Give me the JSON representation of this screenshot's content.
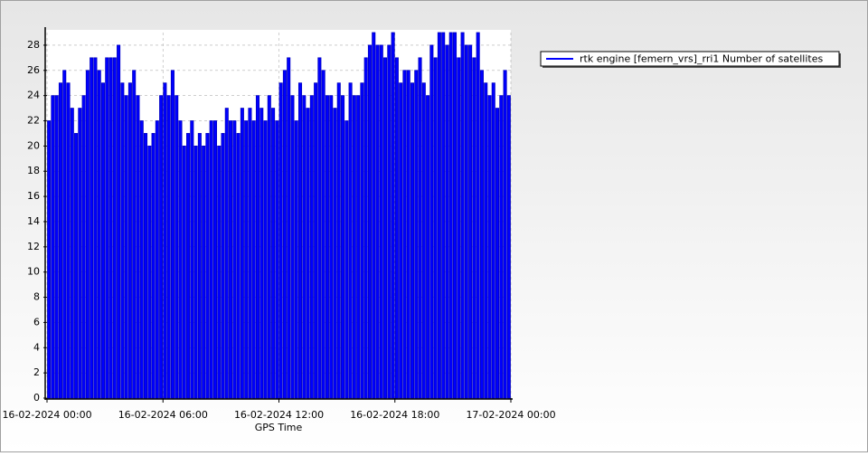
{
  "chart_data": {
    "type": "bar",
    "xlabel": "GPS Time",
    "color": "#0000ff",
    "grid": true,
    "legend": "top-right",
    "series": [
      {
        "name": "rtk engine [femern_vrs]_rri1 Number of satellites",
        "color": "#0000ff",
        "values": [
          22,
          24,
          24,
          25,
          26,
          25,
          23,
          21,
          23,
          24,
          26,
          27,
          27,
          26,
          25,
          27,
          27,
          27,
          28,
          25,
          24,
          25,
          26,
          24,
          22,
          21,
          20,
          21,
          22,
          24,
          25,
          24,
          26,
          24,
          22,
          20,
          21,
          22,
          20,
          21,
          20,
          21,
          22,
          22,
          20,
          21,
          23,
          22,
          22,
          21,
          23,
          22,
          23,
          22,
          24,
          23,
          22,
          24,
          23,
          22,
          25,
          26,
          27,
          24,
          22,
          25,
          24,
          23,
          24,
          25,
          27,
          26,
          24,
          24,
          23,
          25,
          24,
          22,
          25,
          24,
          24,
          25,
          27,
          28,
          29,
          28,
          28,
          27,
          28,
          29,
          27,
          25,
          26,
          26,
          25,
          26,
          27,
          25,
          24,
          28,
          27,
          29,
          29,
          28,
          29,
          29,
          27,
          29,
          28,
          28,
          27,
          29,
          26,
          25,
          24,
          25,
          23,
          24,
          26,
          24
        ]
      }
    ],
    "x": [
      "16-02-2024 00:00",
      "16-02-2024 00:12",
      "16-02-2024 00:24",
      "16-02-2024 00:36",
      "16-02-2024 00:48",
      "16-02-2024 01:00",
      "16-02-2024 01:12",
      "16-02-2024 01:24",
      "16-02-2024 01:36",
      "16-02-2024 01:48",
      "16-02-2024 02:00",
      "16-02-2024 02:12",
      "16-02-2024 02:24",
      "16-02-2024 02:36",
      "16-02-2024 02:48",
      "16-02-2024 03:00",
      "16-02-2024 03:12",
      "16-02-2024 03:24",
      "16-02-2024 03:36",
      "16-02-2024 03:48",
      "16-02-2024 04:00",
      "16-02-2024 04:12",
      "16-02-2024 04:24",
      "16-02-2024 04:36",
      "16-02-2024 04:48",
      "16-02-2024 05:00",
      "16-02-2024 05:12",
      "16-02-2024 05:24",
      "16-02-2024 05:36",
      "16-02-2024 05:48",
      "16-02-2024 06:00",
      "16-02-2024 06:12",
      "16-02-2024 06:24",
      "16-02-2024 06:36",
      "16-02-2024 06:48",
      "16-02-2024 07:00",
      "16-02-2024 07:12",
      "16-02-2024 07:24",
      "16-02-2024 07:36",
      "16-02-2024 07:48",
      "16-02-2024 08:00",
      "16-02-2024 08:12",
      "16-02-2024 08:24",
      "16-02-2024 08:36",
      "16-02-2024 08:48",
      "16-02-2024 09:00",
      "16-02-2024 09:12",
      "16-02-2024 09:24",
      "16-02-2024 09:36",
      "16-02-2024 09:48",
      "16-02-2024 10:00",
      "16-02-2024 10:12",
      "16-02-2024 10:24",
      "16-02-2024 10:36",
      "16-02-2024 10:48",
      "16-02-2024 11:00",
      "16-02-2024 11:12",
      "16-02-2024 11:24",
      "16-02-2024 11:36",
      "16-02-2024 11:48",
      "16-02-2024 12:00",
      "16-02-2024 12:12",
      "16-02-2024 12:24",
      "16-02-2024 12:36",
      "16-02-2024 12:48",
      "16-02-2024 13:00",
      "16-02-2024 13:12",
      "16-02-2024 13:24",
      "16-02-2024 13:36",
      "16-02-2024 13:48",
      "16-02-2024 14:00",
      "16-02-2024 14:12",
      "16-02-2024 14:24",
      "16-02-2024 14:36",
      "16-02-2024 14:48",
      "16-02-2024 15:00",
      "16-02-2024 15:12",
      "16-02-2024 15:24",
      "16-02-2024 15:36",
      "16-02-2024 15:48",
      "16-02-2024 16:00",
      "16-02-2024 16:12",
      "16-02-2024 16:24",
      "16-02-2024 16:36",
      "16-02-2024 16:48",
      "16-02-2024 17:00",
      "16-02-2024 17:12",
      "16-02-2024 17:24",
      "16-02-2024 17:36",
      "16-02-2024 17:48",
      "16-02-2024 18:00",
      "16-02-2024 18:12",
      "16-02-2024 18:24",
      "16-02-2024 18:36",
      "16-02-2024 18:48",
      "16-02-2024 19:00",
      "16-02-2024 19:12",
      "16-02-2024 19:24",
      "16-02-2024 19:36",
      "16-02-2024 19:48",
      "16-02-2024 20:00",
      "16-02-2024 20:12",
      "16-02-2024 20:24",
      "16-02-2024 20:36",
      "16-02-2024 20:48",
      "16-02-2024 21:00",
      "16-02-2024 21:12",
      "16-02-2024 21:24",
      "16-02-2024 21:36",
      "16-02-2024 21:48",
      "16-02-2024 22:00",
      "16-02-2024 22:12",
      "16-02-2024 22:24",
      "16-02-2024 22:36",
      "16-02-2024 22:48",
      "16-02-2024 23:00",
      "16-02-2024 23:12",
      "16-02-2024 23:24",
      "16-02-2024 23:36",
      "16-02-2024 23:48"
    ],
    "xlim": [
      "16-02-2024 00:00",
      "17-02-2024 00:00"
    ],
    "xticks": [
      "16-02-2024 00:00",
      "16-02-2024 06:00",
      "16-02-2024 12:00",
      "16-02-2024 18:00",
      "17-02-2024 00:00"
    ],
    "ylim": [
      0,
      29
    ],
    "yticks": [
      0,
      2,
      4,
      6,
      8,
      10,
      12,
      14,
      16,
      18,
      20,
      22,
      24,
      26,
      28
    ]
  }
}
